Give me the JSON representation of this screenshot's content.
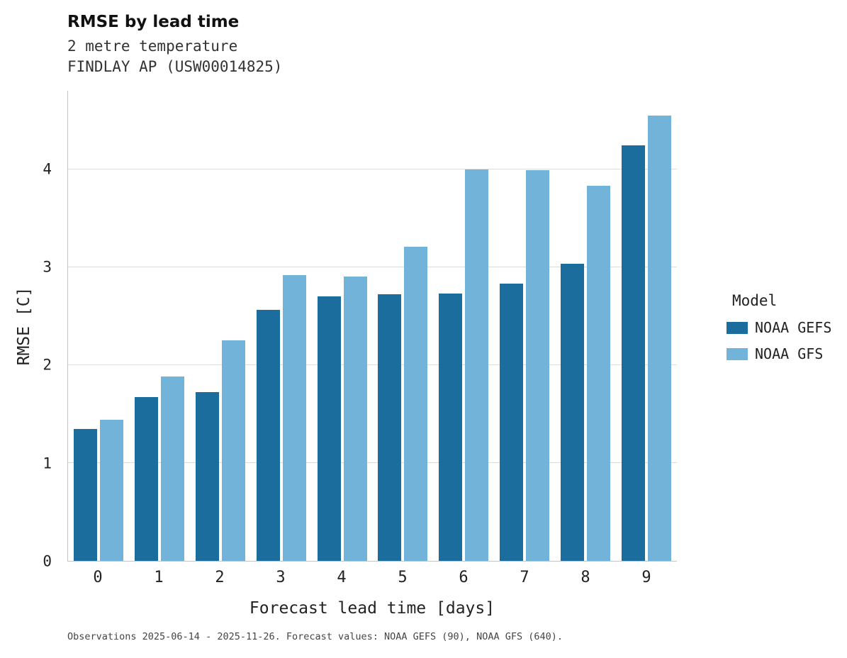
{
  "title": "RMSE by lead time",
  "subtitle_line1": "2 metre temperature",
  "subtitle_line2": "FINDLAY AP (USW00014825)",
  "caption": "Observations 2025-06-14 - 2025-11-26. Forecast values: NOAA GEFS (90), NOAA GFS (640).",
  "legend": {
    "title": "Model",
    "entries": [
      {
        "label": "NOAA GEFS",
        "color": "#1b6d9e"
      },
      {
        "label": "NOAA GFS",
        "color": "#72b3d9"
      }
    ]
  },
  "chart_data": {
    "type": "bar",
    "title": "RMSE by lead time",
    "subtitle": "2 metre temperature — FINDLAY AP (USW00014825)",
    "categories": [
      "0",
      "1",
      "2",
      "3",
      "4",
      "5",
      "6",
      "7",
      "8",
      "9"
    ],
    "series": [
      {
        "name": "NOAA GEFS",
        "color": "#1b6d9e",
        "values": [
          1.35,
          1.67,
          1.72,
          2.56,
          2.7,
          2.72,
          2.73,
          2.83,
          3.03,
          4.24
        ]
      },
      {
        "name": "NOAA GFS",
        "color": "#72b3d9",
        "values": [
          1.44,
          1.88,
          2.25,
          2.92,
          2.9,
          3.21,
          4.0,
          3.99,
          3.83,
          4.55
        ]
      }
    ],
    "xlabel": "Forecast lead time [days]",
    "ylabel": "RMSE [C]",
    "ylim": [
      0,
      4.8
    ],
    "yticks": [
      0,
      1,
      2,
      3,
      4
    ],
    "grid": true,
    "legend_position": "right",
    "legend_title": "Model"
  }
}
